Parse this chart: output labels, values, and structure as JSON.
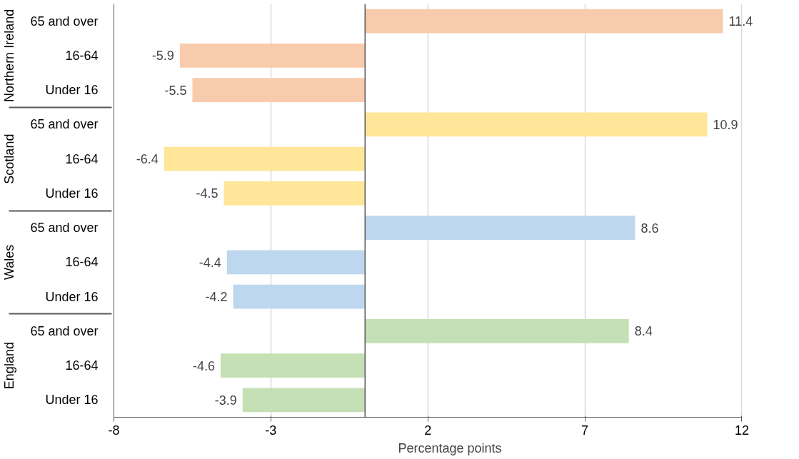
{
  "chart_data": {
    "type": "bar",
    "orientation": "horizontal",
    "xlabel": "Percentage points",
    "categories": [
      "65 and over",
      "16-64",
      "Under 16",
      "65 and over",
      "16-64",
      "Under 16",
      "65 and over",
      "16-64",
      "Under 16",
      "65 and over",
      "16-64",
      "Under 16"
    ],
    "annotations": [
      "Northern Ireland",
      "Scotland",
      "Wales",
      "England"
    ],
    "values": [
      11.4,
      -5.9,
      -5.5,
      10.9,
      -6.4,
      -4.5,
      8.6,
      -4.4,
      -4.2,
      8.4,
      -4.6,
      -3.9
    ],
    "colors": [
      "#f8cbad",
      "#f8cbad",
      "#f8cbad",
      "#ffe699",
      "#ffe699",
      "#ffe699",
      "#bdd7ee",
      "#bdd7ee",
      "#bdd7ee",
      "#c5e0b4",
      "#c5e0b4",
      "#c5e0b4"
    ],
    "xlim": [
      -8,
      12
    ],
    "xticks": [
      -8,
      -3,
      2,
      7,
      12
    ],
    "grid": "x",
    "data_labels": true,
    "ref_lines": [
      {
        "axis": "x",
        "value": 0,
        "color": "#595959"
      }
    ]
  }
}
